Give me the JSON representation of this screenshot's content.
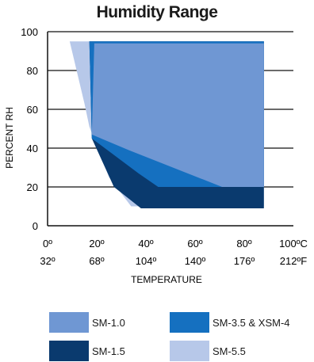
{
  "chart_data": {
    "type": "area",
    "title": "Humidity Range",
    "xlabel": "TEMPERATURE",
    "ylabel": "PERCENT RH",
    "xlim": [
      0,
      100
    ],
    "ylim": [
      0,
      100
    ],
    "y_ticks": [
      0,
      20,
      40,
      60,
      80,
      100
    ],
    "x_ticks_c": [
      "0º",
      "20º",
      "40º",
      "60º",
      "80º",
      "100ºC"
    ],
    "x_ticks_f": [
      "32º",
      "68º",
      "104º",
      "140º",
      "176º",
      "212ºF"
    ],
    "x_tick_values": [
      0,
      20,
      40,
      60,
      80,
      100
    ],
    "grid": "horizontal",
    "legend_position": "bottom",
    "series": [
      {
        "name": "SM-5.5",
        "color": "#b7c8e9",
        "points": [
          [
            9,
            95
          ],
          [
            88,
            95
          ],
          [
            88,
            10
          ],
          [
            34,
            10
          ],
          [
            25,
            25
          ],
          [
            17,
            51
          ],
          [
            15,
            63
          ]
        ]
      },
      {
        "name": "SM-1.5",
        "color": "#0a3a6e",
        "points": [
          [
            17,
            95
          ],
          [
            88,
            95
          ],
          [
            88,
            9
          ],
          [
            38,
            9
          ],
          [
            27,
            20
          ],
          [
            18,
            45
          ]
        ]
      },
      {
        "name": "SM-3.5 & XSM-4",
        "color": "#1570c0",
        "points": [
          [
            17,
            95
          ],
          [
            88,
            95
          ],
          [
            88,
            20
          ],
          [
            45,
            20
          ],
          [
            37,
            27
          ],
          [
            18,
            45
          ]
        ]
      },
      {
        "name": "SM-1.0",
        "color": "#6f97d3",
        "points": [
          [
            19,
            94
          ],
          [
            88,
            94
          ],
          [
            88,
            20
          ],
          [
            71,
            20
          ],
          [
            33,
            39
          ],
          [
            18,
            47
          ]
        ]
      }
    ],
    "legend": [
      {
        "name": "SM-1.0",
        "color": "#6f97d3"
      },
      {
        "name": "SM-3.5 & XSM-4",
        "color": "#1570c0"
      },
      {
        "name": "SM-1.5",
        "color": "#0a3a6e"
      },
      {
        "name": "SM-5.5",
        "color": "#b7c8e9"
      }
    ]
  }
}
